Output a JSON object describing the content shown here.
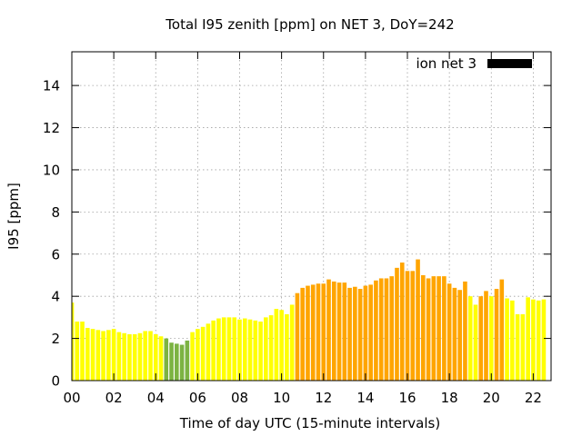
{
  "chart_data": {
    "type": "bar",
    "title": "Total I95 zenith [ppm] on NET 3, DoY=242",
    "xlabel": "Time of day UTC (15-minute intervals)",
    "ylabel": "I95 [ppm]",
    "xlim": [
      0,
      22.85
    ],
    "ylim": [
      0,
      15.6
    ],
    "x_ticks": [
      "00",
      "02",
      "04",
      "06",
      "08",
      "10",
      "12",
      "14",
      "16",
      "18",
      "20",
      "22"
    ],
    "y_ticks": [
      "0",
      "2",
      "4",
      "6",
      "8",
      "10",
      "12",
      "14"
    ],
    "grid": true,
    "legend": {
      "label": "ion net 3",
      "position": "top-right"
    },
    "colors": {
      "yellow": "#ffff00",
      "green": "#7cb342",
      "orange": "#ffa500",
      "frame": "#000000",
      "grid": "#a0a0a0"
    },
    "bar_interval_hours": 0.25,
    "series": [
      {
        "values": [
          3.7,
          2.8,
          2.8,
          2.5,
          2.45,
          2.4,
          2.35,
          2.4,
          2.45,
          2.3,
          2.25,
          2.2,
          2.2,
          2.25,
          2.35,
          2.35,
          2.2,
          2.1,
          2.0,
          1.8,
          1.75,
          1.7,
          1.9,
          2.3,
          2.45,
          2.55,
          2.7,
          2.85,
          2.95,
          3.0,
          3.0,
          3.0,
          2.9,
          2.95,
          2.9,
          2.85,
          2.8,
          3.0,
          3.1,
          3.4,
          3.35,
          3.15,
          3.6,
          4.15,
          4.4,
          4.5,
          4.55,
          4.6,
          4.6,
          4.8,
          4.7,
          4.65,
          4.65,
          4.4,
          4.45,
          4.35,
          4.5,
          4.55,
          4.75,
          4.85,
          4.85,
          4.95,
          5.35,
          5.6,
          5.2,
          5.2,
          5.75,
          5.0,
          4.85,
          4.95,
          4.95,
          4.95,
          4.6,
          4.4,
          4.3,
          4.7,
          4.0,
          3.6,
          4.0,
          4.25,
          4.0,
          4.35,
          4.8,
          3.9,
          3.8,
          3.15,
          3.15,
          3.95,
          3.85,
          3.8,
          3.85
        ],
        "colors": [
          "y",
          "y",
          "y",
          "y",
          "y",
          "y",
          "y",
          "y",
          "y",
          "y",
          "y",
          "y",
          "y",
          "y",
          "y",
          "y",
          "y",
          "y",
          "g",
          "g",
          "g",
          "g",
          "g",
          "y",
          "y",
          "y",
          "y",
          "y",
          "y",
          "y",
          "y",
          "y",
          "y",
          "y",
          "y",
          "y",
          "y",
          "y",
          "y",
          "y",
          "y",
          "y",
          "y",
          "o",
          "o",
          "o",
          "o",
          "o",
          "o",
          "o",
          "o",
          "o",
          "o",
          "o",
          "o",
          "o",
          "o",
          "o",
          "o",
          "o",
          "o",
          "o",
          "o",
          "o",
          "o",
          "o",
          "o",
          "o",
          "o",
          "o",
          "o",
          "o",
          "o",
          "o",
          "o",
          "o",
          "y",
          "y",
          "o",
          "o",
          "y",
          "o",
          "o",
          "y",
          "y",
          "y",
          "y",
          "y",
          "y",
          "y",
          "y"
        ]
      }
    ]
  }
}
